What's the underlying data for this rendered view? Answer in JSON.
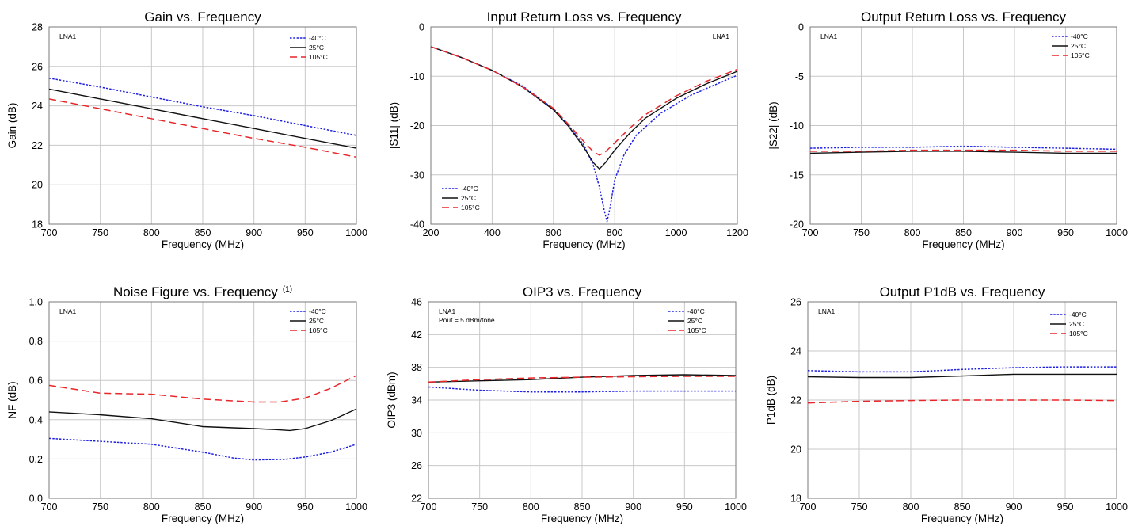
{
  "colors": {
    "cold": "#1f1fe0",
    "room": "#111111",
    "hot": "#e8262a",
    "grid": "#c8c8c8"
  },
  "chart_data": [
    {
      "type": "line",
      "title": "Gain vs. Frequency",
      "superscript": "",
      "xlabel": "Frequency (MHz)",
      "ylabel": "Gain (dB)",
      "xlim": [
        700,
        1000
      ],
      "ylim": [
        18,
        28
      ],
      "xticks": [
        700,
        750,
        800,
        850,
        900,
        950,
        1000
      ],
      "yticks": [
        18,
        20,
        22,
        24,
        26,
        28
      ],
      "grid": true,
      "legend_position": "top-right",
      "annotations": [
        "LNA1"
      ],
      "series": [
        {
          "name": "-40°C",
          "style": "dotted",
          "x": [
            700,
            750,
            800,
            850,
            900,
            950,
            1000
          ],
          "y": [
            25.4,
            24.95,
            24.45,
            23.95,
            23.5,
            23.0,
            22.5
          ]
        },
        {
          "name": "25°C",
          "style": "solid",
          "x": [
            700,
            750,
            800,
            850,
            900,
            950,
            1000
          ],
          "y": [
            24.85,
            24.35,
            23.85,
            23.35,
            22.85,
            22.35,
            21.85
          ]
        },
        {
          "name": "105°C",
          "style": "dashed",
          "x": [
            700,
            750,
            800,
            850,
            900,
            950,
            1000
          ],
          "y": [
            24.35,
            23.85,
            23.35,
            22.85,
            22.35,
            21.9,
            21.4
          ]
        }
      ]
    },
    {
      "type": "line",
      "title": "Input Return Loss vs. Frequency",
      "superscript": "",
      "xlabel": "Frequency (MHz)",
      "ylabel": "|S11| (dB)",
      "xlim": [
        200,
        1200
      ],
      "ylim": [
        -40,
        0
      ],
      "xticks": [
        200,
        400,
        600,
        800,
        1000,
        1200
      ],
      "yticks": [
        -40,
        -30,
        -20,
        -10,
        0
      ],
      "grid": true,
      "legend_position": "bottom-left",
      "annotations": [
        "LNA1"
      ],
      "series": [
        {
          "name": "-40°C",
          "style": "dotted",
          "x": [
            200,
            300,
            400,
            500,
            600,
            650,
            700,
            730,
            750,
            765,
            775,
            785,
            800,
            830,
            870,
            950,
            1050,
            1200
          ],
          "y": [
            -4.0,
            -6.2,
            -8.8,
            -12.0,
            -16.6,
            -20.0,
            -24.0,
            -28.0,
            -32.5,
            -37.0,
            -39.5,
            -36.5,
            -31.0,
            -26.0,
            -22.0,
            -17.5,
            -13.8,
            -9.8
          ]
        },
        {
          "name": "25°C",
          "style": "solid",
          "x": [
            200,
            300,
            400,
            500,
            600,
            650,
            700,
            730,
            750,
            770,
            800,
            850,
            900,
            1000,
            1100,
            1200
          ],
          "y": [
            -4.0,
            -6.2,
            -8.8,
            -12.2,
            -16.8,
            -20.2,
            -24.5,
            -27.5,
            -28.8,
            -27.5,
            -25.0,
            -21.5,
            -18.5,
            -14.5,
            -11.5,
            -9.0
          ]
        },
        {
          "name": "105°C",
          "style": "dashed",
          "x": [
            200,
            300,
            400,
            500,
            600,
            650,
            700,
            730,
            750,
            770,
            800,
            850,
            900,
            1000,
            1100,
            1200
          ],
          "y": [
            -4.0,
            -6.2,
            -8.8,
            -12.2,
            -16.5,
            -19.8,
            -23.3,
            -25.3,
            -26.0,
            -25.3,
            -23.5,
            -20.5,
            -17.8,
            -14.0,
            -11.0,
            -8.6
          ]
        }
      ]
    },
    {
      "type": "line",
      "title": "Output Return Loss vs. Frequency",
      "superscript": "",
      "xlabel": "Frequency (MHz)",
      "ylabel": "|S22| (dB)",
      "xlim": [
        700,
        1000
      ],
      "ylim": [
        -20,
        0
      ],
      "xticks": [
        700,
        750,
        800,
        850,
        900,
        950,
        1000
      ],
      "yticks": [
        -20,
        -15,
        -10,
        -5,
        0
      ],
      "grid": true,
      "legend_position": "top-right",
      "annotations": [
        "LNA1"
      ],
      "series": [
        {
          "name": "-40°C",
          "style": "dotted",
          "x": [
            700,
            750,
            800,
            850,
            900,
            950,
            1000
          ],
          "y": [
            -12.3,
            -12.2,
            -12.2,
            -12.1,
            -12.2,
            -12.3,
            -12.4
          ]
        },
        {
          "name": "25°C",
          "style": "solid",
          "x": [
            700,
            750,
            800,
            850,
            900,
            950,
            1000
          ],
          "y": [
            -12.8,
            -12.7,
            -12.6,
            -12.6,
            -12.7,
            -12.8,
            -12.8
          ]
        },
        {
          "name": "105°C",
          "style": "dashed",
          "x": [
            700,
            750,
            800,
            850,
            900,
            950,
            1000
          ],
          "y": [
            -12.6,
            -12.6,
            -12.5,
            -12.5,
            -12.5,
            -12.6,
            -12.6
          ]
        }
      ]
    },
    {
      "type": "line",
      "title": "Noise Figure vs. Frequency",
      "superscript": "(1)",
      "xlabel": "Frequency (MHz)",
      "ylabel": "NF (dB)",
      "xlim": [
        700,
        1000
      ],
      "ylim": [
        0,
        1
      ],
      "xticks": [
        700,
        750,
        800,
        850,
        900,
        950,
        1000
      ],
      "yticks": [
        "0.0",
        "0.2",
        "0.4",
        "0.6",
        "0.8",
        "1.0"
      ],
      "grid": true,
      "legend_position": "top-right",
      "annotations": [
        "LNA1"
      ],
      "series": [
        {
          "name": "-40°C",
          "style": "dotted",
          "x": [
            700,
            750,
            800,
            850,
            880,
            900,
            930,
            950,
            975,
            1000
          ],
          "y": [
            0.305,
            0.29,
            0.275,
            0.235,
            0.205,
            0.195,
            0.198,
            0.21,
            0.235,
            0.275
          ]
        },
        {
          "name": "25°C",
          "style": "solid",
          "x": [
            700,
            750,
            800,
            850,
            900,
            920,
            935,
            950,
            975,
            1000
          ],
          "y": [
            0.44,
            0.425,
            0.405,
            0.365,
            0.355,
            0.35,
            0.345,
            0.355,
            0.395,
            0.455
          ]
        },
        {
          "name": "105°C",
          "style": "dashed",
          "x": [
            700,
            750,
            800,
            850,
            900,
            925,
            950,
            975,
            1000
          ],
          "y": [
            0.575,
            0.535,
            0.53,
            0.505,
            0.49,
            0.49,
            0.51,
            0.56,
            0.625
          ]
        }
      ]
    },
    {
      "type": "line",
      "title": "OIP3 vs. Frequency",
      "superscript": "",
      "xlabel": "Frequency (MHz)",
      "ylabel": "OIP3 (dBm)",
      "xlim": [
        700,
        1000
      ],
      "ylim": [
        22,
        46
      ],
      "xticks": [
        700,
        750,
        800,
        850,
        900,
        950,
        1000
      ],
      "yticks": [
        22,
        26,
        30,
        34,
        38,
        42,
        46
      ],
      "grid": true,
      "legend_position": "top-right",
      "annotations": [
        "LNA1",
        "Pout = 5 dBm/tone"
      ],
      "series": [
        {
          "name": "-40°C",
          "style": "dotted",
          "x": [
            700,
            750,
            800,
            850,
            900,
            950,
            1000
          ],
          "y": [
            35.6,
            35.2,
            35.0,
            35.0,
            35.1,
            35.1,
            35.1
          ]
        },
        {
          "name": "25°C",
          "style": "solid",
          "x": [
            700,
            750,
            800,
            850,
            900,
            950,
            1000
          ],
          "y": [
            36.2,
            36.35,
            36.5,
            36.8,
            37.0,
            37.1,
            37.0
          ]
        },
        {
          "name": "105°C",
          "style": "dashed",
          "x": [
            700,
            750,
            800,
            850,
            900,
            950,
            1000
          ],
          "y": [
            36.2,
            36.5,
            36.7,
            36.8,
            36.85,
            36.9,
            36.9
          ]
        }
      ]
    },
    {
      "type": "line",
      "title": "Output P1dB vs. Frequency",
      "superscript": "",
      "xlabel": "Frequency (MHz)",
      "ylabel": "P1dB (dB)",
      "xlim": [
        700,
        1000
      ],
      "ylim": [
        18,
        26
      ],
      "xticks": [
        700,
        750,
        800,
        850,
        900,
        950,
        1000
      ],
      "yticks": [
        18,
        20,
        22,
        24,
        26
      ],
      "grid": true,
      "legend_position": "top-right",
      "annotations": [
        "LNA1"
      ],
      "series": [
        {
          "name": "-40°C",
          "style": "dotted",
          "x": [
            700,
            750,
            800,
            850,
            900,
            950,
            1000
          ],
          "y": [
            23.2,
            23.15,
            23.15,
            23.25,
            23.32,
            23.35,
            23.35
          ]
        },
        {
          "name": "25°C",
          "style": "solid",
          "x": [
            700,
            750,
            800,
            850,
            900,
            950,
            1000
          ],
          "y": [
            22.95,
            22.92,
            22.92,
            22.98,
            23.05,
            23.05,
            23.05
          ]
        },
        {
          "name": "105°C",
          "style": "dashed",
          "x": [
            700,
            750,
            800,
            850,
            900,
            950,
            1000
          ],
          "y": [
            21.88,
            21.95,
            21.98,
            22.0,
            22.0,
            22.0,
            21.98
          ]
        }
      ]
    }
  ]
}
